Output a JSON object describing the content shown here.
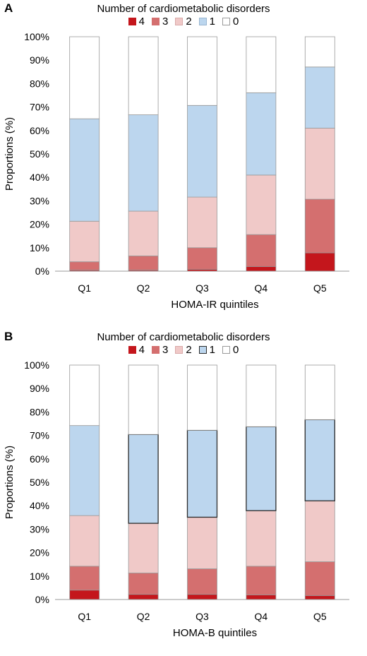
{
  "colors": {
    "4": "#c4161c",
    "3": "#d46f6f",
    "2": "#f0c9c8",
    "1": "#bcd6ee",
    "0": "#ffffff",
    "outline": "#9a9a9a",
    "outline_dark": "#2b2b2b"
  },
  "chart_data": [
    {
      "type": "bar",
      "stacked": true,
      "panel_label": "A",
      "legend_title": "Number of cardiometabolic disorders",
      "legend_placement": "top-center",
      "legend": [
        "4",
        "3",
        "2",
        "1",
        "0"
      ],
      "categories": [
        "Q1",
        "Q2",
        "Q3",
        "Q4",
        "Q5"
      ],
      "xlabel": "HOMA-IR quintiles",
      "ylabel": "Proportions (%)",
      "ylim": [
        0,
        100
      ],
      "yticks": [
        "0%",
        "10%",
        "20%",
        "30%",
        "40%",
        "50%",
        "60%",
        "70%",
        "80%",
        "90%",
        "100%"
      ],
      "grid": false,
      "series": [
        {
          "name": "4",
          "values": [
            0.5,
            0.5,
            0.8,
            2.0,
            7.8
          ]
        },
        {
          "name": "3",
          "values": [
            3.5,
            6.0,
            9.2,
            13.6,
            22.9
          ]
        },
        {
          "name": "2",
          "values": [
            17.3,
            19.1,
            21.6,
            25.4,
            30.3
          ]
        },
        {
          "name": "1",
          "values": [
            43.7,
            41.1,
            39.1,
            35.1,
            26.1
          ]
        },
        {
          "name": "0",
          "values": [
            35.0,
            33.3,
            29.3,
            23.9,
            12.9
          ]
        }
      ]
    },
    {
      "type": "bar",
      "stacked": true,
      "panel_label": "B",
      "legend_title": "Number of cardiometabolic disorders",
      "legend_placement": "top-center",
      "legend": [
        "4",
        "3",
        "2",
        "1",
        "0"
      ],
      "categories": [
        "Q1",
        "Q2",
        "Q3",
        "Q4",
        "Q5"
      ],
      "xlabel": "HOMA-B quintiles",
      "ylabel": "Proportions (%)",
      "ylim": [
        0,
        100
      ],
      "yticks": [
        "0%",
        "10%",
        "20%",
        "30%",
        "40%",
        "50%",
        "60%",
        "70%",
        "80%",
        "90%",
        "100%"
      ],
      "grid": false,
      "highlighted_segment": {
        "series": "1",
        "categories": [
          "Q2",
          "Q3",
          "Q4",
          "Q5"
        ]
      },
      "series": [
        {
          "name": "4",
          "values": [
            4.0,
            2.2,
            2.2,
            2.0,
            1.7
          ]
        },
        {
          "name": "3",
          "values": [
            10.2,
            9.1,
            10.9,
            12.2,
            14.4
          ]
        },
        {
          "name": "2",
          "values": [
            21.6,
            21.2,
            22.0,
            23.7,
            26.0
          ]
        },
        {
          "name": "1",
          "values": [
            38.4,
            37.9,
            37.1,
            35.8,
            34.6
          ]
        },
        {
          "name": "0",
          "values": [
            25.8,
            29.6,
            27.8,
            26.3,
            23.3
          ]
        }
      ]
    }
  ]
}
